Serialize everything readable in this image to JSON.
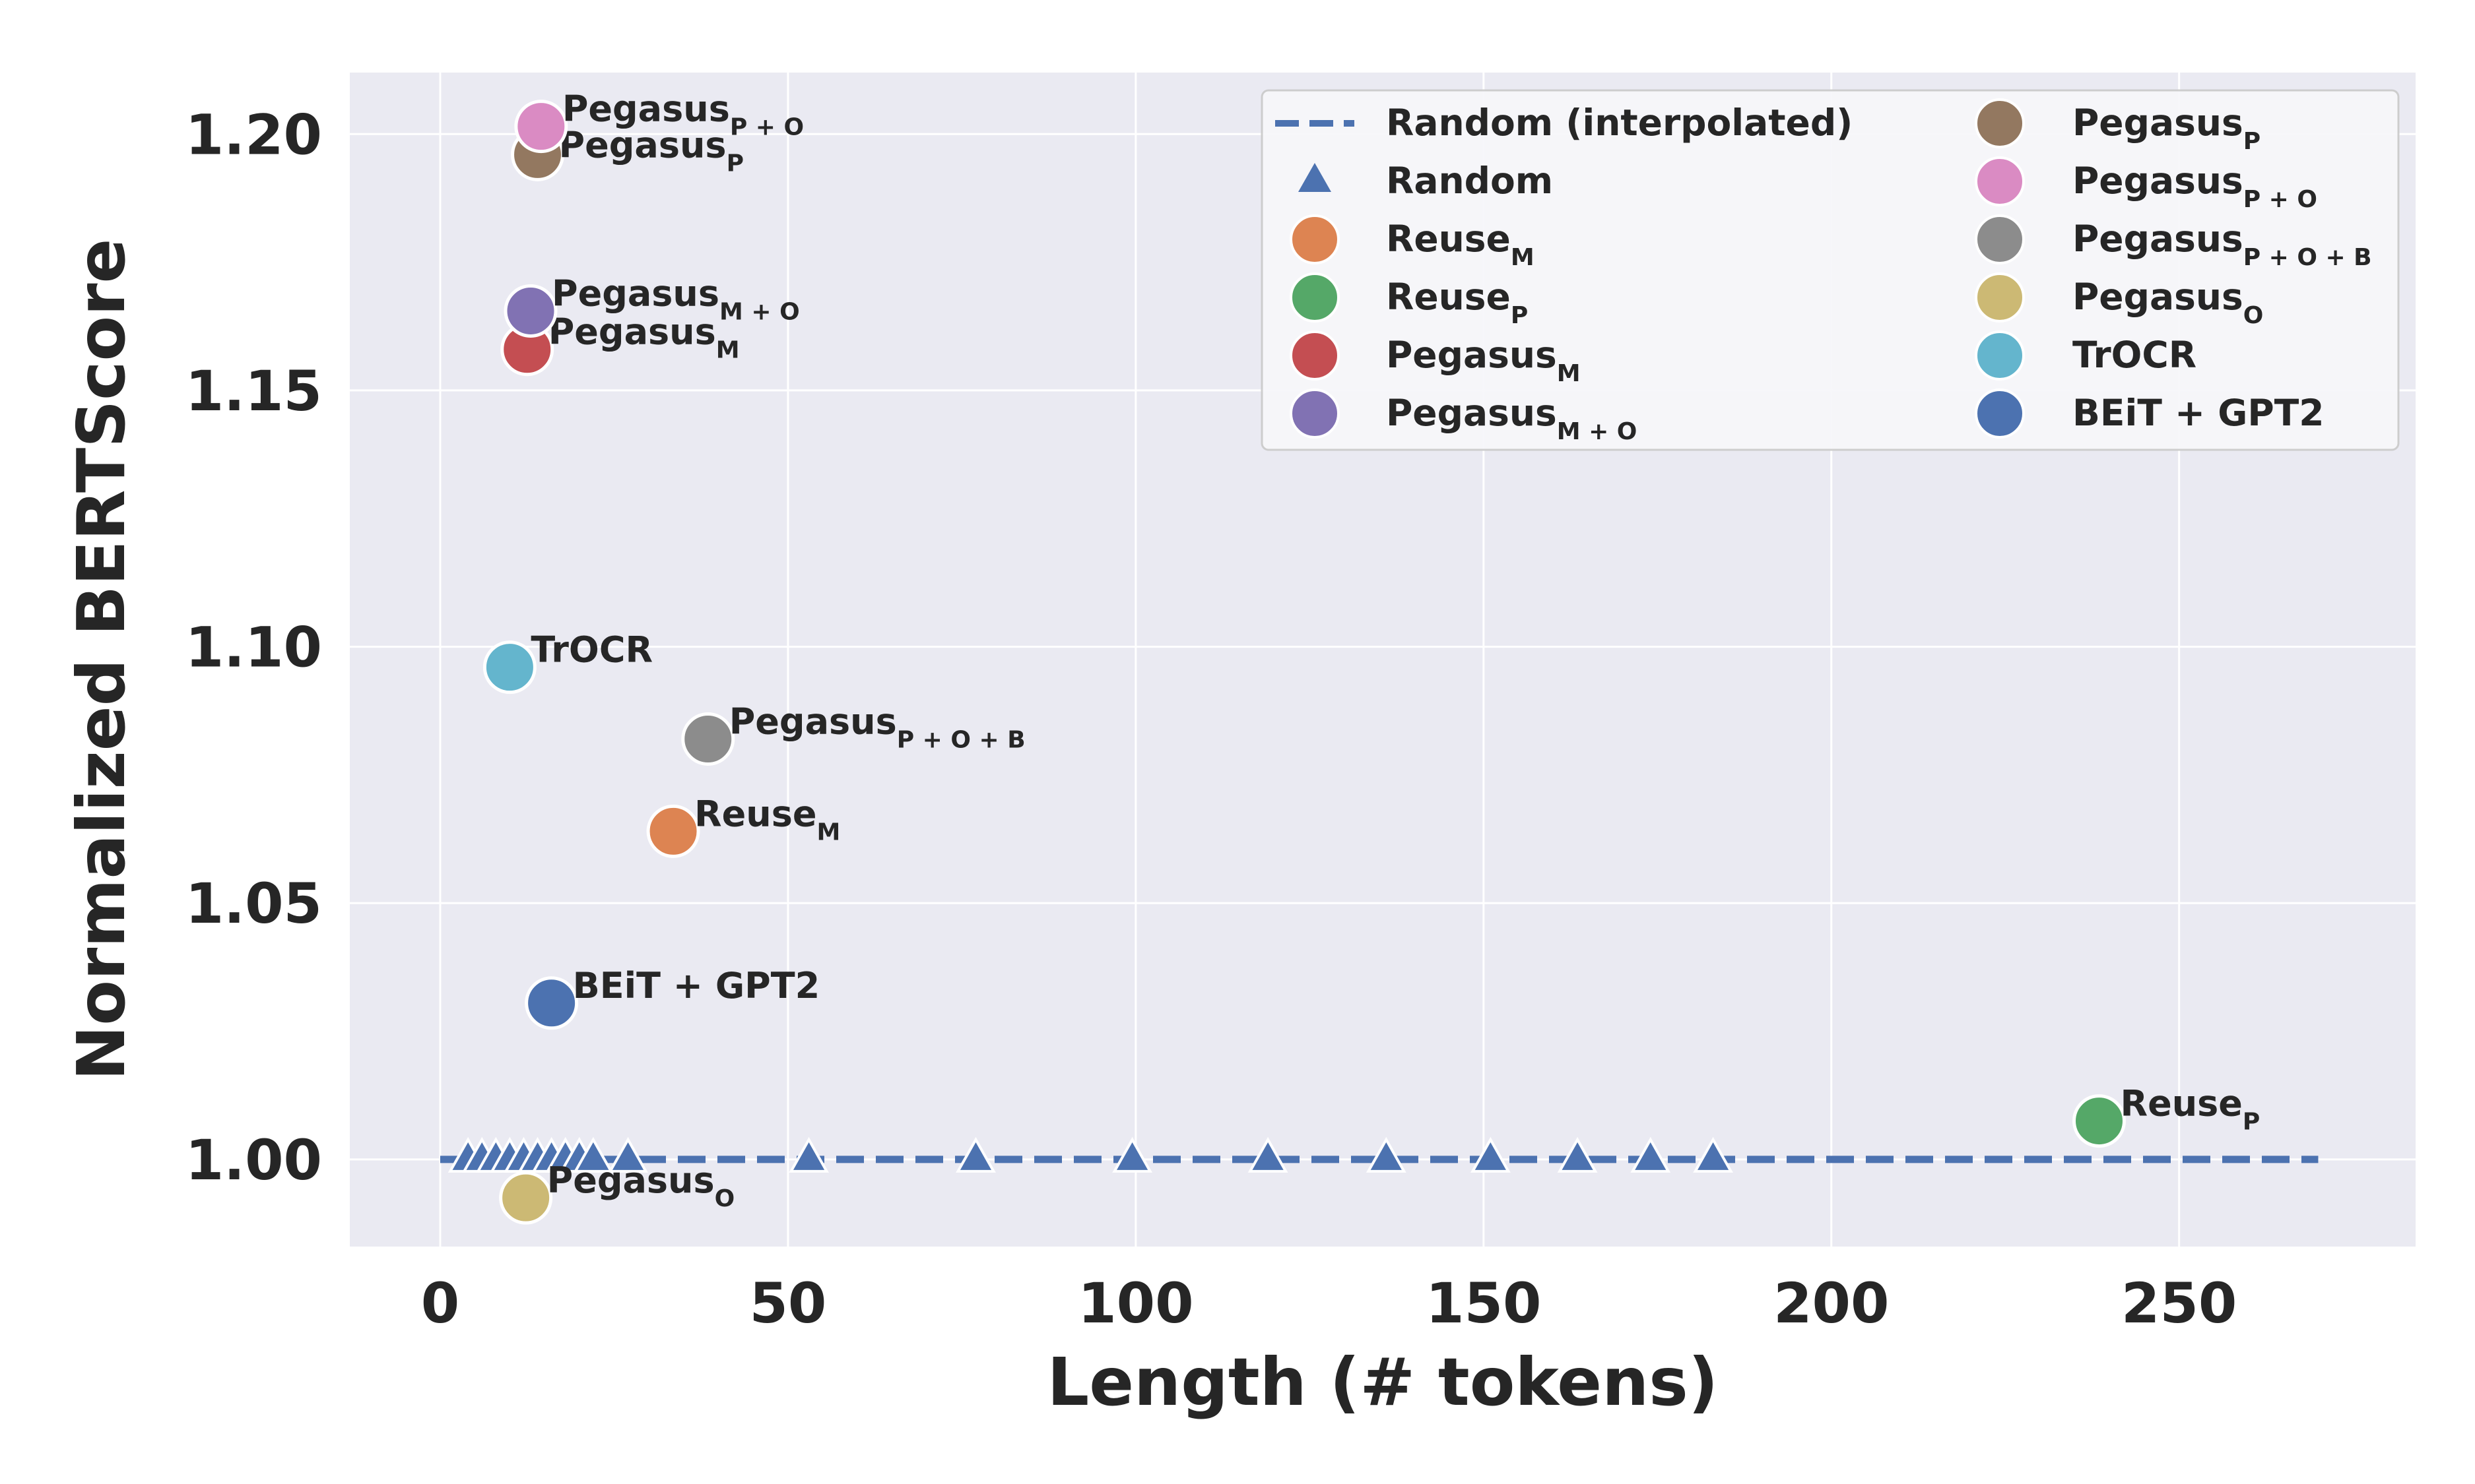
{
  "chart_data": {
    "type": "scatter",
    "xlabel": "Length (# tokens)",
    "ylabel": "Normalized BERTScore",
    "xlim": [
      -13,
      284
    ],
    "ylim": [
      0.983,
      1.212
    ],
    "xticks": [
      0,
      50,
      100,
      150,
      200,
      250
    ],
    "yticks": [
      1.0,
      1.05,
      1.1,
      1.15,
      1.2
    ],
    "xtick_labels": [
      "0",
      "50",
      "100",
      "150",
      "200",
      "250"
    ],
    "ytick_labels": [
      "1.00",
      "1.05",
      "1.10",
      "1.15",
      "1.20"
    ],
    "grid": true,
    "legend_position": "top-right",
    "random_line": {
      "name": "Random (interpolated)",
      "color": "#4c72b0",
      "x": [
        0,
        270
      ],
      "y": [
        1.0,
        1.0
      ]
    },
    "random_points": {
      "name": "Random",
      "color": "#4c72b0",
      "marker": "triangle",
      "x": [
        4,
        6,
        8,
        10,
        12,
        14,
        16,
        18,
        20,
        22,
        27,
        53,
        77,
        99.5,
        119,
        136,
        151,
        163.5,
        174,
        183
      ],
      "y": [
        1.0,
        1.0,
        1.0,
        1.0,
        1.0,
        1.0,
        1.0,
        1.0,
        1.0,
        1.0,
        1.0,
        1.0,
        1.0,
        1.0,
        1.0,
        1.0,
        1.0,
        1.0,
        1.0,
        1.0
      ]
    },
    "series": [
      {
        "name": "Reuse",
        "sub": "M",
        "color": "#dd8452",
        "x": 33.5,
        "y": 1.064,
        "label_dx": 32,
        "label_dy": -8
      },
      {
        "name": "Reuse",
        "sub": "P",
        "color": "#55a868",
        "x": 238.5,
        "y": 1.0075,
        "label_dx": 32,
        "label_dy": -8
      },
      {
        "name": "Pegasus",
        "sub": "M",
        "color": "#c44e52",
        "x": 12.5,
        "y": 1.158,
        "label_dx": 32,
        "label_dy": -8
      },
      {
        "name": "Pegasus",
        "sub": "M + O",
        "color": "#8172b3",
        "x": 13,
        "y": 1.1655,
        "label_dx": 32,
        "label_dy": -8
      },
      {
        "name": "Pegasus",
        "sub": "P",
        "color": "#937860",
        "x": 14,
        "y": 1.196,
        "label_dx": 32,
        "label_dy": 4
      },
      {
        "name": "Pegasus",
        "sub": "P + O",
        "color": "#da8bc3",
        "x": 14.5,
        "y": 1.2015,
        "label_dx": 32,
        "label_dy": -8
      },
      {
        "name": "Pegasus",
        "sub": "P + O + B",
        "color": "#8c8c8c",
        "x": 38.5,
        "y": 1.082,
        "label_dx": 32,
        "label_dy": -8
      },
      {
        "name": "Pegasus",
        "sub": "O",
        "color": "#ccb974",
        "x": 12.3,
        "y": 0.9925,
        "label_dx": 32,
        "label_dy": -8
      },
      {
        "name": "TrOCR",
        "sub": "",
        "color": "#64b5cd",
        "x": 10,
        "y": 1.096,
        "label_dx": 32,
        "label_dy": -8
      },
      {
        "name": "BEiT + GPT2",
        "sub": "",
        "color": "#4c72b0",
        "x": 16,
        "y": 1.0305,
        "label_dx": 32,
        "label_dy": -8
      }
    ]
  },
  "legend": {
    "left": [
      {
        "kind": "line",
        "name": "Random (interpolated)",
        "sub": "",
        "color": "#4c72b0"
      },
      {
        "kind": "triangle",
        "name": "Random",
        "sub": "",
        "color": "#4c72b0"
      },
      {
        "kind": "circle",
        "name": "Reuse",
        "sub": "M",
        "color": "#dd8452"
      },
      {
        "kind": "circle",
        "name": "Reuse",
        "sub": "P",
        "color": "#55a868"
      },
      {
        "kind": "circle",
        "name": "Pegasus",
        "sub": "M",
        "color": "#c44e52"
      },
      {
        "kind": "circle",
        "name": "Pegasus",
        "sub": "M + O",
        "color": "#8172b3"
      }
    ],
    "right": [
      {
        "kind": "circle",
        "name": "Pegasus",
        "sub": "P",
        "color": "#937860"
      },
      {
        "kind": "circle",
        "name": "Pegasus",
        "sub": "P + O",
        "color": "#da8bc3"
      },
      {
        "kind": "circle",
        "name": "Pegasus",
        "sub": "P + O + B",
        "color": "#8c8c8c"
      },
      {
        "kind": "circle",
        "name": "Pegasus",
        "sub": "O",
        "color": "#ccb974"
      },
      {
        "kind": "circle",
        "name": "TrOCR",
        "sub": "",
        "color": "#64b5cd"
      },
      {
        "kind": "circle",
        "name": "BEiT + GPT2",
        "sub": "",
        "color": "#4c72b0"
      }
    ]
  },
  "colors": {
    "plot_background": "#eaeaf2",
    "grid": "#ffffff",
    "text": "#262626"
  }
}
